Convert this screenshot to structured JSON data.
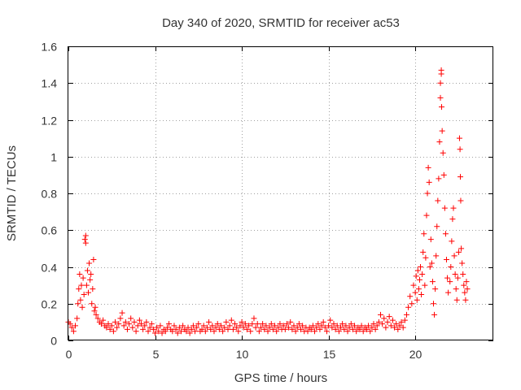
{
  "chart_data": {
    "type": "scatter",
    "title": "Day 340 of 2020, SRMTID for receiver ac53",
    "xlabel": "GPS time / hours",
    "ylabel": "SRMTID / TECUs",
    "xlim": [
      0,
      24.5
    ],
    "ylim": [
      0,
      1.6
    ],
    "xticks": [
      0,
      5,
      10,
      15,
      20
    ],
    "xtick_labels": [
      "0",
      "5",
      "10",
      "15",
      "20"
    ],
    "yticks": [
      0,
      0.2,
      0.4,
      0.6,
      0.8,
      1.0,
      1.2,
      1.4,
      1.6
    ],
    "ytick_labels": [
      "0",
      "0.2",
      "0.4",
      "0.6",
      "0.8",
      "1",
      "1.2",
      "1.4",
      "1.6"
    ],
    "grid": true,
    "marker": "+",
    "color": "#ff0000",
    "series": [
      {
        "name": "SRMTID",
        "points": [
          [
            0.0,
            0.1
          ],
          [
            0.1,
            0.09
          ],
          [
            0.2,
            0.07
          ],
          [
            0.3,
            0.05
          ],
          [
            0.4,
            0.08
          ],
          [
            0.5,
            0.12
          ],
          [
            0.55,
            0.2
          ],
          [
            0.6,
            0.28
          ],
          [
            0.65,
            0.36
          ],
          [
            0.7,
            0.22
          ],
          [
            0.75,
            0.3
          ],
          [
            0.8,
            0.18
          ],
          [
            0.85,
            0.34
          ],
          [
            0.9,
            0.25
          ],
          [
            0.95,
            0.55
          ],
          [
            1.0,
            0.53
          ],
          [
            1.0,
            0.57
          ],
          [
            1.05,
            0.3
          ],
          [
            1.1,
            0.38
          ],
          [
            1.15,
            0.26
          ],
          [
            1.2,
            0.42
          ],
          [
            1.25,
            0.33
          ],
          [
            1.3,
            0.36
          ],
          [
            1.35,
            0.2
          ],
          [
            1.4,
            0.28
          ],
          [
            1.45,
            0.44
          ],
          [
            1.5,
            0.16
          ],
          [
            1.55,
            0.18
          ],
          [
            1.6,
            0.14
          ],
          [
            1.7,
            0.12
          ],
          [
            1.8,
            0.1
          ],
          [
            1.9,
            0.09
          ],
          [
            2.0,
            0.11
          ],
          [
            2.1,
            0.08
          ],
          [
            2.2,
            0.07
          ],
          [
            2.3,
            0.09
          ],
          [
            2.4,
            0.06
          ],
          [
            2.5,
            0.08
          ],
          [
            2.6,
            0.05
          ],
          [
            2.7,
            0.1
          ],
          [
            2.8,
            0.07
          ],
          [
            2.9,
            0.09
          ],
          [
            3.0,
            0.12
          ],
          [
            3.1,
            0.15
          ],
          [
            3.2,
            0.08
          ],
          [
            3.3,
            0.1
          ],
          [
            3.4,
            0.06
          ],
          [
            3.5,
            0.09
          ],
          [
            3.6,
            0.12
          ],
          [
            3.7,
            0.07
          ],
          [
            3.8,
            0.1
          ],
          [
            3.9,
            0.05
          ],
          [
            4.0,
            0.08
          ],
          [
            4.1,
            0.11
          ],
          [
            4.2,
            0.09
          ],
          [
            4.3,
            0.06
          ],
          [
            4.4,
            0.08
          ],
          [
            4.5,
            0.1
          ],
          [
            4.6,
            0.05
          ],
          [
            4.7,
            0.07
          ],
          [
            4.8,
            0.09
          ],
          [
            4.9,
            0.06
          ],
          [
            5.0,
            0.04
          ],
          [
            5.1,
            0.07
          ],
          [
            5.2,
            0.05
          ],
          [
            5.3,
            0.08
          ],
          [
            5.4,
            0.04
          ],
          [
            5.5,
            0.06
          ],
          [
            5.6,
            0.05
          ],
          [
            5.7,
            0.07
          ],
          [
            5.8,
            0.09
          ],
          [
            5.9,
            0.06
          ],
          [
            6.0,
            0.05
          ],
          [
            6.1,
            0.08
          ],
          [
            6.2,
            0.06
          ],
          [
            6.3,
            0.04
          ],
          [
            6.4,
            0.07
          ],
          [
            6.5,
            0.05
          ],
          [
            6.6,
            0.08
          ],
          [
            6.7,
            0.06
          ],
          [
            6.8,
            0.05
          ],
          [
            6.9,
            0.07
          ],
          [
            7.0,
            0.04
          ],
          [
            7.1,
            0.06
          ],
          [
            7.2,
            0.08
          ],
          [
            7.3,
            0.05
          ],
          [
            7.4,
            0.07
          ],
          [
            7.5,
            0.09
          ],
          [
            7.6,
            0.05
          ],
          [
            7.7,
            0.06
          ],
          [
            7.8,
            0.08
          ],
          [
            7.9,
            0.05
          ],
          [
            8.0,
            0.07
          ],
          [
            8.1,
            0.1
          ],
          [
            8.2,
            0.06
          ],
          [
            8.3,
            0.08
          ],
          [
            8.4,
            0.05
          ],
          [
            8.5,
            0.07
          ],
          [
            8.6,
            0.09
          ],
          [
            8.7,
            0.06
          ],
          [
            8.8,
            0.08
          ],
          [
            8.9,
            0.05
          ],
          [
            9.0,
            0.07
          ],
          [
            9.1,
            0.1
          ],
          [
            9.2,
            0.06
          ],
          [
            9.3,
            0.08
          ],
          [
            9.4,
            0.11
          ],
          [
            9.5,
            0.06
          ],
          [
            9.6,
            0.09
          ],
          [
            9.7,
            0.07
          ],
          [
            9.8,
            0.05
          ],
          [
            9.9,
            0.08
          ],
          [
            10.0,
            0.1
          ],
          [
            10.1,
            0.07
          ],
          [
            10.2,
            0.09
          ],
          [
            10.3,
            0.06
          ],
          [
            10.4,
            0.08
          ],
          [
            10.5,
            0.05
          ],
          [
            10.6,
            0.09
          ],
          [
            10.7,
            0.12
          ],
          [
            10.8,
            0.07
          ],
          [
            10.9,
            0.09
          ],
          [
            11.0,
            0.05
          ],
          [
            11.1,
            0.07
          ],
          [
            11.2,
            0.09
          ],
          [
            11.3,
            0.06
          ],
          [
            11.4,
            0.08
          ],
          [
            11.5,
            0.05
          ],
          [
            11.6,
            0.07
          ],
          [
            11.7,
            0.09
          ],
          [
            11.8,
            0.06
          ],
          [
            11.9,
            0.08
          ],
          [
            12.0,
            0.05
          ],
          [
            12.1,
            0.07
          ],
          [
            12.2,
            0.09
          ],
          [
            12.3,
            0.06
          ],
          [
            12.4,
            0.08
          ],
          [
            12.5,
            0.06
          ],
          [
            12.6,
            0.09
          ],
          [
            12.7,
            0.07
          ],
          [
            12.8,
            0.1
          ],
          [
            12.9,
            0.06
          ],
          [
            13.0,
            0.08
          ],
          [
            13.1,
            0.05
          ],
          [
            13.2,
            0.07
          ],
          [
            13.3,
            0.09
          ],
          [
            13.4,
            0.06
          ],
          [
            13.5,
            0.08
          ],
          [
            13.6,
            0.05
          ],
          [
            13.7,
            0.07
          ],
          [
            13.8,
            0.05
          ],
          [
            13.9,
            0.07
          ],
          [
            14.0,
            0.06
          ],
          [
            14.1,
            0.08
          ],
          [
            14.2,
            0.05
          ],
          [
            14.3,
            0.07
          ],
          [
            14.4,
            0.09
          ],
          [
            14.5,
            0.06
          ],
          [
            14.6,
            0.08
          ],
          [
            14.7,
            0.1
          ],
          [
            14.8,
            0.07
          ],
          [
            14.9,
            0.05
          ],
          [
            15.0,
            0.08
          ],
          [
            15.1,
            0.11
          ],
          [
            15.2,
            0.07
          ],
          [
            15.3,
            0.09
          ],
          [
            15.4,
            0.06
          ],
          [
            15.5,
            0.08
          ],
          [
            15.6,
            0.05
          ],
          [
            15.7,
            0.07
          ],
          [
            15.8,
            0.09
          ],
          [
            15.9,
            0.06
          ],
          [
            16.0,
            0.08
          ],
          [
            16.1,
            0.05
          ],
          [
            16.2,
            0.07
          ],
          [
            16.3,
            0.09
          ],
          [
            16.4,
            0.06
          ],
          [
            16.5,
            0.08
          ],
          [
            16.6,
            0.05
          ],
          [
            16.7,
            0.07
          ],
          [
            16.8,
            0.06
          ],
          [
            16.9,
            0.08
          ],
          [
            17.0,
            0.05
          ],
          [
            17.1,
            0.07
          ],
          [
            17.2,
            0.06
          ],
          [
            17.3,
            0.08
          ],
          [
            17.4,
            0.05
          ],
          [
            17.5,
            0.07
          ],
          [
            17.6,
            0.09
          ],
          [
            17.7,
            0.06
          ],
          [
            17.8,
            0.08
          ],
          [
            17.9,
            0.1
          ],
          [
            18.0,
            0.14
          ],
          [
            18.1,
            0.09
          ],
          [
            18.2,
            0.12
          ],
          [
            18.3,
            0.07
          ],
          [
            18.4,
            0.1
          ],
          [
            18.5,
            0.13
          ],
          [
            18.6,
            0.08
          ],
          [
            18.7,
            0.11
          ],
          [
            18.8,
            0.07
          ],
          [
            18.9,
            0.09
          ],
          [
            19.0,
            0.06
          ],
          [
            19.1,
            0.08
          ],
          [
            19.2,
            0.1
          ],
          [
            19.3,
            0.07
          ],
          [
            19.4,
            0.11
          ],
          [
            19.5,
            0.14
          ],
          [
            19.6,
            0.18
          ],
          [
            19.7,
            0.24
          ],
          [
            19.8,
            0.2
          ],
          [
            19.9,
            0.3
          ],
          [
            20.0,
            0.26
          ],
          [
            20.05,
            0.35
          ],
          [
            20.1,
            0.22
          ],
          [
            20.15,
            0.38
          ],
          [
            20.2,
            0.28
          ],
          [
            20.25,
            0.33
          ],
          [
            20.3,
            0.4
          ],
          [
            20.35,
            0.25
          ],
          [
            20.4,
            0.36
          ],
          [
            20.45,
            0.48
          ],
          [
            20.5,
            0.58
          ],
          [
            20.55,
            0.3
          ],
          [
            20.6,
            0.45
          ],
          [
            20.65,
            0.68
          ],
          [
            20.7,
            0.8
          ],
          [
            20.75,
            0.94
          ],
          [
            20.8,
            0.86
          ],
          [
            20.85,
            0.4
          ],
          [
            20.9,
            0.55
          ],
          [
            20.95,
            0.42
          ],
          [
            21.0,
            0.32
          ],
          [
            21.05,
            0.2
          ],
          [
            21.1,
            0.14
          ],
          [
            21.15,
            0.28
          ],
          [
            21.2,
            0.46
          ],
          [
            21.25,
            0.62
          ],
          [
            21.3,
            0.76
          ],
          [
            21.35,
            0.88
          ],
          [
            21.4,
            1.08
          ],
          [
            21.45,
            1.32
          ],
          [
            21.45,
            1.4
          ],
          [
            21.5,
            1.47
          ],
          [
            21.5,
            1.45
          ],
          [
            21.52,
            1.27
          ],
          [
            21.55,
            1.14
          ],
          [
            21.6,
            1.02
          ],
          [
            21.65,
            0.9
          ],
          [
            21.7,
            0.72
          ],
          [
            21.75,
            0.58
          ],
          [
            21.8,
            0.44
          ],
          [
            21.85,
            0.34
          ],
          [
            21.9,
            0.26
          ],
          [
            22.0,
            0.32
          ],
          [
            22.05,
            0.4
          ],
          [
            22.1,
            0.54
          ],
          [
            22.15,
            0.66
          ],
          [
            22.2,
            0.72
          ],
          [
            22.25,
            0.46
          ],
          [
            22.3,
            0.36
          ],
          [
            22.35,
            0.28
          ],
          [
            22.4,
            0.22
          ],
          [
            22.45,
            0.34
          ],
          [
            22.5,
            0.48
          ],
          [
            22.55,
            1.1
          ],
          [
            22.58,
            1.04
          ],
          [
            22.6,
            0.89
          ],
          [
            22.62,
            0.76
          ],
          [
            22.65,
            0.5
          ],
          [
            22.7,
            0.42
          ],
          [
            22.75,
            0.36
          ],
          [
            22.8,
            0.3
          ],
          [
            22.85,
            0.26
          ],
          [
            22.9,
            0.22
          ],
          [
            22.95,
            0.32
          ],
          [
            23.0,
            0.28
          ]
        ]
      }
    ]
  }
}
